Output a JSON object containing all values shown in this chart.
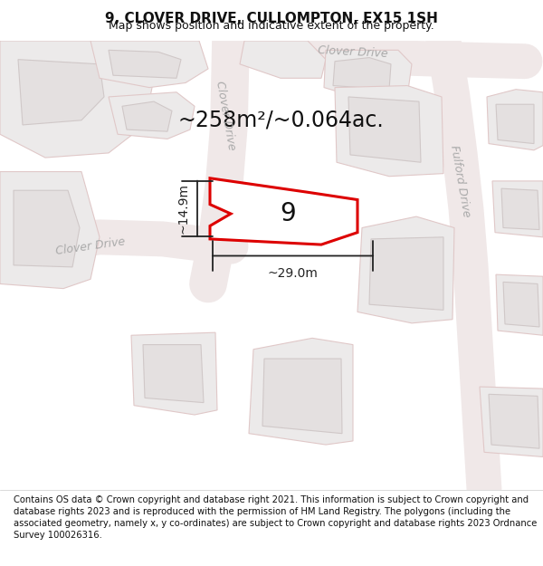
{
  "title": "9, CLOVER DRIVE, CULLOMPTON, EX15 1SH",
  "subtitle": "Map shows position and indicative extent of the property.",
  "footer": "Contains OS data © Crown copyright and database right 2021. This information is subject to Crown copyright and database rights 2023 and is reproduced with the permission of HM Land Registry. The polygons (including the associated geometry, namely x, y co-ordinates) are subject to Crown copyright and database rights 2023 Ordnance Survey 100026316.",
  "area_label": "~258m²/~0.064ac.",
  "width_label": "~29.0m",
  "height_label": "~14.9m",
  "property_number": "9",
  "map_bg": "#f7f5f5",
  "road_fill": "#f0e8e8",
  "road_edge": "#e8c8c8",
  "plot_outline": "#dd0000",
  "plot_fill": "#ffffff",
  "building_fill": "#e4e0e0",
  "building_edge": "#d0c8c8",
  "lot_fill": "#eceaea",
  "lot_edge": "#e0c8c8",
  "dim_color": "#222222",
  "road_label_color": "#aaaaaa",
  "title_color": "#111111",
  "title_fontsize": 11,
  "subtitle_fontsize": 9,
  "footer_fontsize": 7.2,
  "area_fontsize": 17,
  "num_fontsize": 20
}
